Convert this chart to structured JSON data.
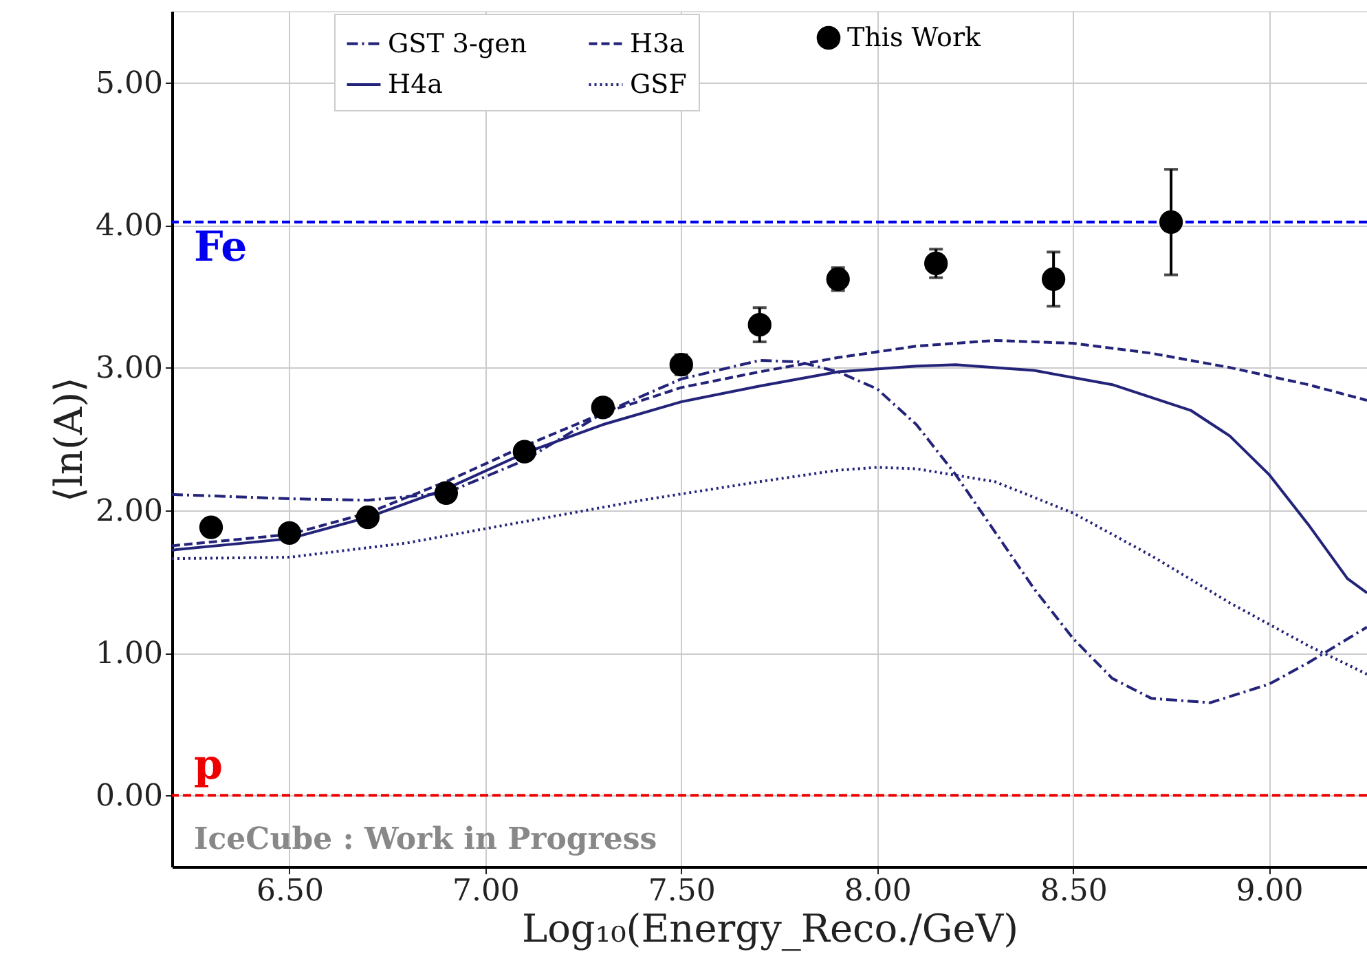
{
  "chart_data": {
    "type": "line",
    "xlabel": "Log₁₀(Energy_Reco./GeV)",
    "ylabel": "⟨ln(A)⟩",
    "xlim": [
      6.2,
      9.25
    ],
    "ylim": [
      -0.5,
      5.5
    ],
    "xticks": [
      {
        "value": 6.5,
        "label": "6.50"
      },
      {
        "value": 7,
        "label": "7.00"
      },
      {
        "value": 7.5,
        "label": "7.50"
      },
      {
        "value": 8,
        "label": "8.00"
      },
      {
        "value": 8.5,
        "label": "8.50"
      },
      {
        "value": 9,
        "label": "9.00"
      }
    ],
    "yticks": [
      {
        "value": 0,
        "label": "0.00"
      },
      {
        "value": 1,
        "label": "1.00"
      },
      {
        "value": 2,
        "label": "2.00"
      },
      {
        "value": 3,
        "label": "3.00"
      },
      {
        "value": 4,
        "label": "4.00"
      },
      {
        "value": 5,
        "label": "5.00"
      }
    ],
    "grid": true,
    "legend": "top",
    "series": [
      {
        "name": "GST 3-gen",
        "line_style": "dashdot",
        "color": "#23237a",
        "x": [
          6.2,
          6.5,
          6.7,
          6.9,
          7.1,
          7.3,
          7.5,
          7.7,
          7.8,
          7.9,
          8.0,
          8.1,
          8.2,
          8.3,
          8.4,
          8.5,
          8.6,
          8.7,
          8.85,
          9.0,
          9.1,
          9.25
        ],
        "values": [
          2.11,
          2.08,
          2.07,
          2.12,
          2.35,
          2.68,
          2.92,
          3.05,
          3.04,
          2.97,
          2.85,
          2.6,
          2.25,
          1.85,
          1.45,
          1.1,
          0.82,
          0.68,
          0.65,
          0.78,
          0.93,
          1.18
        ]
      },
      {
        "name": "H3a",
        "line_style": "dashed",
        "color": "#23237a",
        "x": [
          6.2,
          6.5,
          6.7,
          6.9,
          7.1,
          7.3,
          7.5,
          7.7,
          7.9,
          8.1,
          8.3,
          8.5,
          8.7,
          8.9,
          9.1,
          9.25
        ],
        "values": [
          1.75,
          1.83,
          1.98,
          2.2,
          2.45,
          2.68,
          2.86,
          2.97,
          3.07,
          3.15,
          3.19,
          3.17,
          3.1,
          3.0,
          2.88,
          2.77
        ]
      },
      {
        "name": "H4a",
        "line_style": "solid",
        "color": "#23237a",
        "x": [
          6.2,
          6.5,
          6.7,
          6.9,
          7.1,
          7.3,
          7.5,
          7.7,
          7.9,
          8.1,
          8.2,
          8.4,
          8.6,
          8.8,
          8.9,
          9.0,
          9.1,
          9.2,
          9.25
        ],
        "values": [
          1.72,
          1.8,
          1.95,
          2.15,
          2.4,
          2.6,
          2.76,
          2.87,
          2.97,
          3.01,
          3.02,
          2.98,
          2.88,
          2.7,
          2.52,
          2.25,
          1.9,
          1.52,
          1.42
        ]
      },
      {
        "name": "GSF",
        "line_style": "dotted",
        "color": "#23237a",
        "x": [
          6.2,
          6.5,
          6.8,
          7.1,
          7.4,
          7.7,
          7.9,
          8.0,
          8.1,
          8.3,
          8.5,
          8.7,
          8.9,
          9.1,
          9.25
        ],
        "values": [
          1.66,
          1.67,
          1.77,
          1.92,
          2.07,
          2.2,
          2.28,
          2.3,
          2.29,
          2.2,
          1.98,
          1.68,
          1.35,
          1.05,
          0.85
        ]
      },
      {
        "name": "This Work",
        "type": "scatter",
        "marker": "circle",
        "color": "#000000",
        "x": [
          6.3,
          6.5,
          6.7,
          6.9,
          7.1,
          7.3,
          7.5,
          7.7,
          7.9,
          8.15,
          8.45,
          8.75
        ],
        "values": [
          1.88,
          1.84,
          1.95,
          2.12,
          2.41,
          2.72,
          3.02,
          3.3,
          3.62,
          3.73,
          3.62,
          4.02
        ],
        "errors": [
          0.04,
          0.04,
          0.04,
          0.04,
          0.05,
          0.06,
          0.07,
          0.12,
          0.08,
          0.1,
          0.19,
          0.37
        ]
      }
    ],
    "ref_lines": [
      {
        "axis": "y",
        "value": 4.02,
        "label": "Fe",
        "color": "#0000ee",
        "line_style": "dashed"
      },
      {
        "axis": "y",
        "value": 0,
        "label": "p",
        "color": "#ee0000",
        "line_style": "dashed"
      }
    ],
    "annotations": [
      "IceCube : Work in Progress"
    ]
  }
}
